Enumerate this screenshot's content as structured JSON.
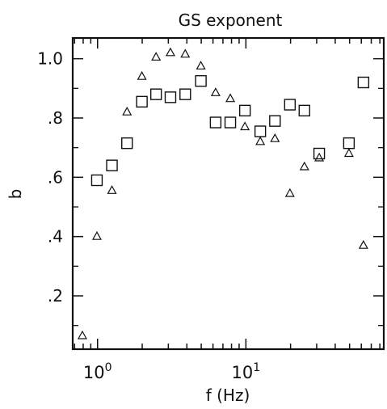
{
  "chart_data": {
    "type": "scatter",
    "title": "GS exponent",
    "xlabel": "f (Hz)",
    "ylabel": "b",
    "x_scale": "log",
    "x_ticks": [
      {
        "value": 1,
        "label_base": "10",
        "label_exp": "0"
      },
      {
        "value": 10,
        "label_base": "10",
        "label_exp": "1"
      }
    ],
    "y_ticks": [
      {
        "value": 0.2,
        "label": ".2"
      },
      {
        "value": 0.4,
        "label": ".4"
      },
      {
        "value": 0.6,
        "label": ".6"
      },
      {
        "value": 0.8,
        "label": ".8"
      },
      {
        "value": 1.0,
        "label": "1.0"
      }
    ],
    "xlim": [
      0.68,
      85
    ],
    "ylim": [
      0.02,
      1.07
    ],
    "series": [
      {
        "marker": "square",
        "points": [
          [
            0.99,
            0.59
          ],
          [
            1.25,
            0.64
          ],
          [
            1.58,
            0.715
          ],
          [
            1.99,
            0.855
          ],
          [
            2.48,
            0.88
          ],
          [
            3.1,
            0.87
          ],
          [
            3.9,
            0.88
          ],
          [
            4.97,
            0.925
          ],
          [
            6.25,
            0.785
          ],
          [
            7.85,
            0.785
          ],
          [
            9.85,
            0.825
          ],
          [
            12.5,
            0.755
          ],
          [
            15.7,
            0.79
          ],
          [
            19.8,
            0.845
          ],
          [
            24.8,
            0.825
          ],
          [
            31.2,
            0.68
          ],
          [
            49.5,
            0.715
          ],
          [
            62,
            0.92
          ]
        ]
      },
      {
        "marker": "triangle",
        "points": [
          [
            0.79,
            0.065
          ],
          [
            0.99,
            0.4
          ],
          [
            1.25,
            0.555
          ],
          [
            1.58,
            0.82
          ],
          [
            1.99,
            0.94
          ],
          [
            2.48,
            1.005
          ],
          [
            3.1,
            1.02
          ],
          [
            3.9,
            1.015
          ],
          [
            4.97,
            0.975
          ],
          [
            6.25,
            0.885
          ],
          [
            7.85,
            0.865
          ],
          [
            9.85,
            0.77
          ],
          [
            12.5,
            0.72
          ],
          [
            15.7,
            0.73
          ],
          [
            19.8,
            0.545
          ],
          [
            24.8,
            0.635
          ],
          [
            31.2,
            0.665
          ],
          [
            49.5,
            0.68
          ],
          [
            62,
            0.37
          ]
        ]
      }
    ]
  }
}
